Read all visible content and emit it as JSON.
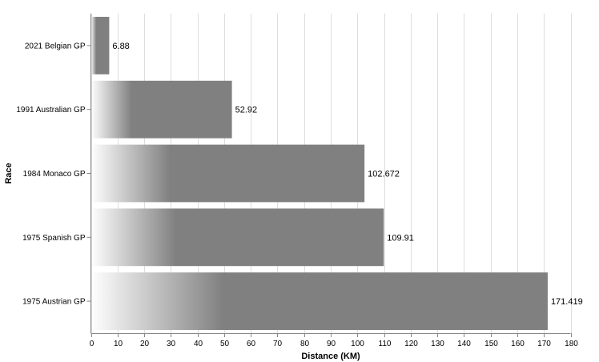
{
  "chart_data": {
    "type": "bar",
    "orientation": "horizontal",
    "categories": [
      "2021 Belgian GP",
      "1991 Australian GP",
      "1984 Monaco GP",
      "1975 Spanish GP",
      "1975 Austrian GP"
    ],
    "values": [
      6.88,
      52.92,
      102.672,
      109.91,
      171.419
    ],
    "data_labels": [
      "6.88",
      "52.92",
      "102.672",
      "109.91",
      "171.419"
    ],
    "xlabel": "Distance (KM)",
    "ylabel": "Race",
    "xlim": [
      0,
      180
    ],
    "x_ticks": [
      0,
      10,
      20,
      30,
      40,
      50,
      60,
      70,
      80,
      90,
      100,
      110,
      120,
      130,
      140,
      150,
      160,
      170,
      180
    ],
    "grid": true,
    "bar_color": "#808080",
    "gradient_start_color": "#ffffff"
  }
}
